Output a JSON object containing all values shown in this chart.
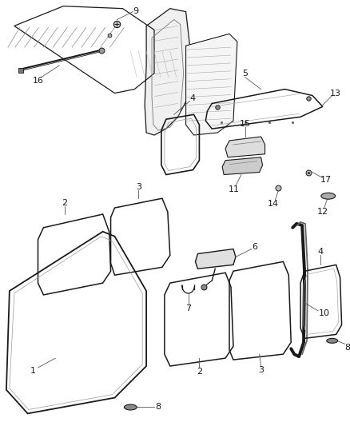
{
  "bg": "#ffffff",
  "lc": "#1a1a1a",
  "lc2": "#555555",
  "fig_w": 4.38,
  "fig_h": 5.33,
  "dpi": 100
}
